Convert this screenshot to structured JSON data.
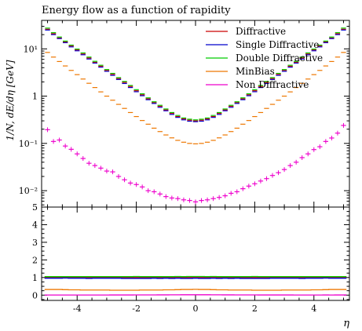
{
  "chart_data": {
    "type": "scatter",
    "title": "Energy flow as a function of rapidity",
    "xlabel": "η",
    "ylabel": "1/N, dE/dη [GeV]",
    "xlim": [
      -5.2,
      5.2
    ],
    "main": {
      "ylim": [
        0.0045,
        40
      ],
      "log_y": true,
      "ytick_labels": [
        {
          "value": 0.01,
          "label": "10⁻²"
        },
        {
          "value": 0.1,
          "label": "10⁻¹"
        },
        {
          "value": 1,
          "label": "1"
        },
        {
          "value": 10,
          "label": "10¹"
        }
      ]
    },
    "ratio": {
      "ylim": [
        -0.3,
        5
      ],
      "yticks": [
        0,
        1,
        2,
        3,
        4,
        5
      ]
    },
    "xticks": [
      -4,
      -2,
      0,
      2,
      4
    ],
    "legend_position": "top-right",
    "x": [
      -5.0,
      -4.8,
      -4.6,
      -4.4,
      -4.2,
      -4.0,
      -3.8,
      -3.6,
      -3.4,
      -3.2,
      -3.0,
      -2.8,
      -2.6,
      -2.4,
      -2.2,
      -2.0,
      -1.8,
      -1.6,
      -1.4,
      -1.2,
      -1.0,
      -0.8,
      -0.6,
      -0.4,
      -0.2,
      0.0,
      0.2,
      0.4,
      0.6,
      0.8,
      1.0,
      1.2,
      1.4,
      1.6,
      1.8,
      2.0,
      2.2,
      2.4,
      2.6,
      2.8,
      3.0,
      3.2,
      3.4,
      3.6,
      3.8,
      4.0,
      4.2,
      4.4,
      4.6,
      4.8,
      5.0
    ],
    "series": [
      {
        "name": "Diffractive",
        "color": "#cc0000",
        "values": [
          26,
          21,
          17,
          14,
          11.5,
          9.5,
          7.8,
          6.4,
          5.2,
          4.3,
          3.5,
          2.9,
          2.35,
          1.95,
          1.6,
          1.3,
          1.07,
          0.88,
          0.73,
          0.61,
          0.51,
          0.43,
          0.37,
          0.33,
          0.31,
          0.3,
          0.31,
          0.33,
          0.37,
          0.43,
          0.51,
          0.61,
          0.73,
          0.88,
          1.07,
          1.3,
          1.6,
          1.95,
          2.35,
          2.9,
          3.5,
          4.3,
          5.2,
          6.4,
          7.8,
          9.5,
          11.5,
          14,
          17,
          21,
          26
        ],
        "ratio": [
          1.0,
          1.0,
          1.0,
          1.0,
          1.0,
          1.0,
          1.0,
          1.0,
          1.0,
          1.0,
          1.0,
          1.0,
          1.0,
          1.0,
          1.0,
          1.0,
          1.0,
          1.0,
          1.0,
          1.0,
          1.0,
          1.0,
          1.0,
          1.0,
          1.0,
          1.0,
          1.0,
          1.0,
          1.0,
          1.0,
          1.0,
          1.0,
          1.0,
          1.0,
          1.0,
          1.0,
          1.0,
          1.0,
          1.0,
          1.0,
          1.0,
          1.0,
          1.0,
          1.0,
          1.0,
          1.0,
          1.0,
          1.0,
          1.0,
          1.0,
          1.0
        ]
      },
      {
        "name": "Single Diffractive",
        "color": "#0000cc",
        "values": [
          25,
          20,
          16.5,
          13.5,
          11,
          9.1,
          7.5,
          6.1,
          5.0,
          4.1,
          3.35,
          2.75,
          2.25,
          1.85,
          1.52,
          1.24,
          1.02,
          0.84,
          0.7,
          0.58,
          0.49,
          0.41,
          0.355,
          0.315,
          0.295,
          0.288,
          0.295,
          0.315,
          0.355,
          0.41,
          0.49,
          0.58,
          0.7,
          0.84,
          1.02,
          1.24,
          1.52,
          1.85,
          2.25,
          2.75,
          3.35,
          4.1,
          5.0,
          6.1,
          7.5,
          9.1,
          11,
          13.5,
          16.5,
          20,
          25
        ],
        "ratio": [
          0.96,
          0.96,
          0.96,
          0.97,
          0.96,
          0.96,
          0.96,
          0.95,
          0.96,
          0.96,
          0.96,
          0.96,
          0.96,
          0.95,
          0.95,
          0.95,
          0.95,
          0.95,
          0.96,
          0.95,
          0.96,
          0.95,
          0.96,
          0.95,
          0.95,
          0.96,
          0.95,
          0.95,
          0.96,
          0.95,
          0.96,
          0.95,
          0.96,
          0.95,
          0.95,
          0.95,
          0.95,
          0.95,
          0.96,
          0.96,
          0.96,
          0.96,
          0.96,
          0.95,
          0.96,
          0.96,
          0.96,
          0.97,
          0.96,
          0.96,
          0.96
        ]
      },
      {
        "name": "Double Diffractive",
        "color": "#00cc00",
        "values": [
          27.5,
          22,
          17.8,
          14.6,
          12,
          9.9,
          8.2,
          6.7,
          5.45,
          4.5,
          3.65,
          3.03,
          2.46,
          2.04,
          1.68,
          1.37,
          1.12,
          0.92,
          0.76,
          0.64,
          0.535,
          0.45,
          0.39,
          0.345,
          0.325,
          0.315,
          0.325,
          0.345,
          0.39,
          0.45,
          0.535,
          0.64,
          0.76,
          0.92,
          1.12,
          1.37,
          1.68,
          2.04,
          2.46,
          3.03,
          3.65,
          4.5,
          5.45,
          6.7,
          8.2,
          9.9,
          12,
          14.6,
          17.8,
          22,
          27.5
        ],
        "ratio": [
          1.05,
          1.05,
          1.05,
          1.05,
          1.05,
          1.05,
          1.05,
          1.05,
          1.05,
          1.05,
          1.05,
          1.05,
          1.05,
          1.05,
          1.05,
          1.06,
          1.05,
          1.05,
          1.05,
          1.05,
          1.05,
          1.05,
          1.06,
          1.05,
          1.06,
          1.06,
          1.06,
          1.05,
          1.06,
          1.05,
          1.05,
          1.05,
          1.05,
          1.05,
          1.05,
          1.06,
          1.05,
          1.05,
          1.05,
          1.05,
          1.05,
          1.05,
          1.05,
          1.05,
          1.05,
          1.05,
          1.05,
          1.05,
          1.05,
          1.05,
          1.05
        ]
      },
      {
        "name": "MinBias",
        "color": "#ee7700",
        "values": [
          8.4,
          6.7,
          5.4,
          4.35,
          3.5,
          2.85,
          2.3,
          1.87,
          1.52,
          1.23,
          1.0,
          0.82,
          0.67,
          0.55,
          0.45,
          0.37,
          0.305,
          0.255,
          0.21,
          0.178,
          0.151,
          0.131,
          0.116,
          0.106,
          0.1,
          0.098,
          0.1,
          0.106,
          0.116,
          0.131,
          0.151,
          0.178,
          0.21,
          0.255,
          0.305,
          0.37,
          0.45,
          0.55,
          0.67,
          0.82,
          1.0,
          1.23,
          1.52,
          1.87,
          2.3,
          2.85,
          3.5,
          4.35,
          5.4,
          6.7,
          8.4
        ],
        "ratio": [
          0.32,
          0.32,
          0.32,
          0.31,
          0.3,
          0.3,
          0.29,
          0.29,
          0.29,
          0.29,
          0.29,
          0.28,
          0.28,
          0.28,
          0.28,
          0.28,
          0.29,
          0.29,
          0.29,
          0.29,
          0.3,
          0.3,
          0.31,
          0.32,
          0.32,
          0.33,
          0.32,
          0.32,
          0.31,
          0.3,
          0.3,
          0.29,
          0.29,
          0.29,
          0.29,
          0.28,
          0.28,
          0.28,
          0.28,
          0.28,
          0.29,
          0.29,
          0.29,
          0.29,
          0.29,
          0.3,
          0.3,
          0.31,
          0.32,
          0.32,
          0.32
        ]
      },
      {
        "name": "Non Diffractive",
        "color": "#ee00cc",
        "values": [
          0.195,
          0.11,
          0.118,
          0.088,
          0.075,
          0.06,
          0.048,
          0.038,
          0.034,
          0.03,
          0.026,
          0.025,
          0.02,
          0.017,
          0.0145,
          0.0135,
          0.012,
          0.01,
          0.0095,
          0.0085,
          0.0075,
          0.007,
          0.0068,
          0.0064,
          0.0062,
          0.0058,
          0.0062,
          0.0064,
          0.0068,
          0.0072,
          0.0078,
          0.0088,
          0.0095,
          0.011,
          0.0125,
          0.014,
          0.016,
          0.018,
          0.021,
          0.024,
          0.028,
          0.034,
          0.04,
          0.05,
          0.06,
          0.074,
          0.085,
          0.11,
          0.13,
          0.165,
          0.24
        ],
        "ratio": [
          0.0075,
          0.0052,
          0.0069,
          0.0063,
          0.0065,
          0.0063,
          0.0062,
          0.0059,
          0.0065,
          0.007,
          0.0074,
          0.0086,
          0.0085,
          0.0087,
          0.0091,
          0.0104,
          0.0112,
          0.0114,
          0.013,
          0.0139,
          0.0147,
          0.0163,
          0.0184,
          0.0194,
          0.02,
          0.0193,
          0.02,
          0.0194,
          0.0184,
          0.0167,
          0.0153,
          0.0144,
          0.013,
          0.0125,
          0.0117,
          0.0108,
          0.01,
          0.0092,
          0.0089,
          0.0083,
          0.008,
          0.0079,
          0.0077,
          0.0078,
          0.0077,
          0.0078,
          0.0074,
          0.0079,
          0.0076,
          0.0079,
          0.0092
        ]
      }
    ]
  }
}
